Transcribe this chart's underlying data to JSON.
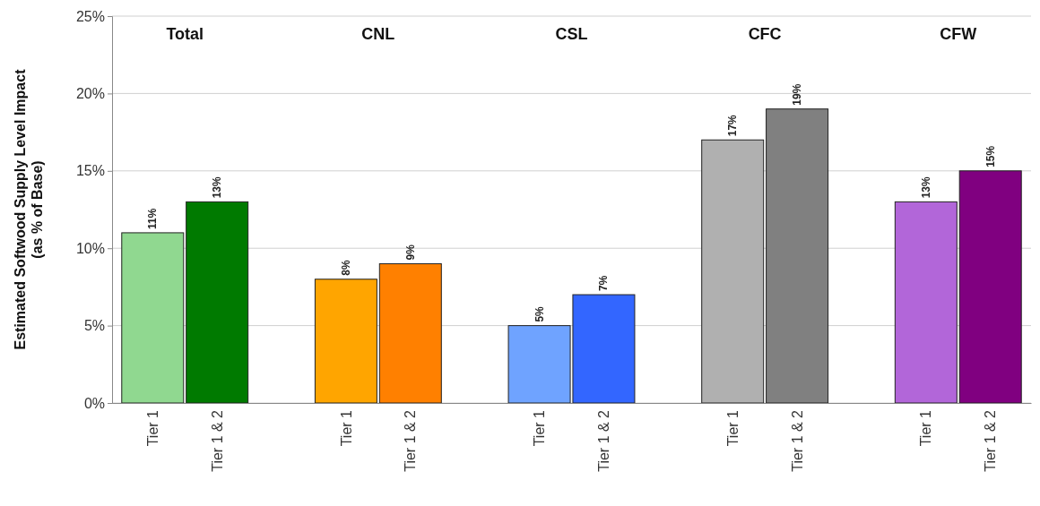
{
  "chart_data": {
    "type": "bar",
    "ylabel": "Estimated Softwood Supply Level Impact\n(as % of Base)",
    "categories": [
      "Tier 1",
      "Tier 1 & 2",
      null,
      "Tier 1",
      "Tier 1 & 2",
      null,
      "Tier 1",
      "Tier 1 & 2",
      null,
      "Tier 1",
      "Tier 1 & 2",
      null,
      "Tier 1",
      "Tier 1 & 2"
    ],
    "values": [
      11,
      13,
      null,
      8,
      9,
      null,
      5,
      7,
      null,
      17,
      19,
      null,
      13,
      15
    ],
    "colors": [
      "#90d890",
      "#007a00",
      null,
      "#ffa500",
      "#ff8000",
      null,
      "#6fa3ff",
      "#3366ff",
      null,
      "#b0b0b0",
      "#808080",
      null,
      "#b266d9",
      "#800080"
    ],
    "value_labels": [
      "11%",
      "13%",
      null,
      "8%",
      "9%",
      null,
      "5%",
      "7%",
      null,
      "17%",
      "19%",
      null,
      "13%",
      "15%"
    ],
    "annotations": [
      "Total",
      "CNL",
      "CSL",
      "CFC",
      "CFW"
    ],
    "ylim": [
      0,
      25
    ],
    "yticks": [
      {
        "value": 0,
        "label": "0%"
      },
      {
        "value": 5,
        "label": "5%"
      },
      {
        "value": 10,
        "label": "10%"
      },
      {
        "value": 15,
        "label": "15%"
      },
      {
        "value": 20,
        "label": "20%"
      },
      {
        "value": 25,
        "label": "25%"
      }
    ],
    "grid": "y"
  }
}
